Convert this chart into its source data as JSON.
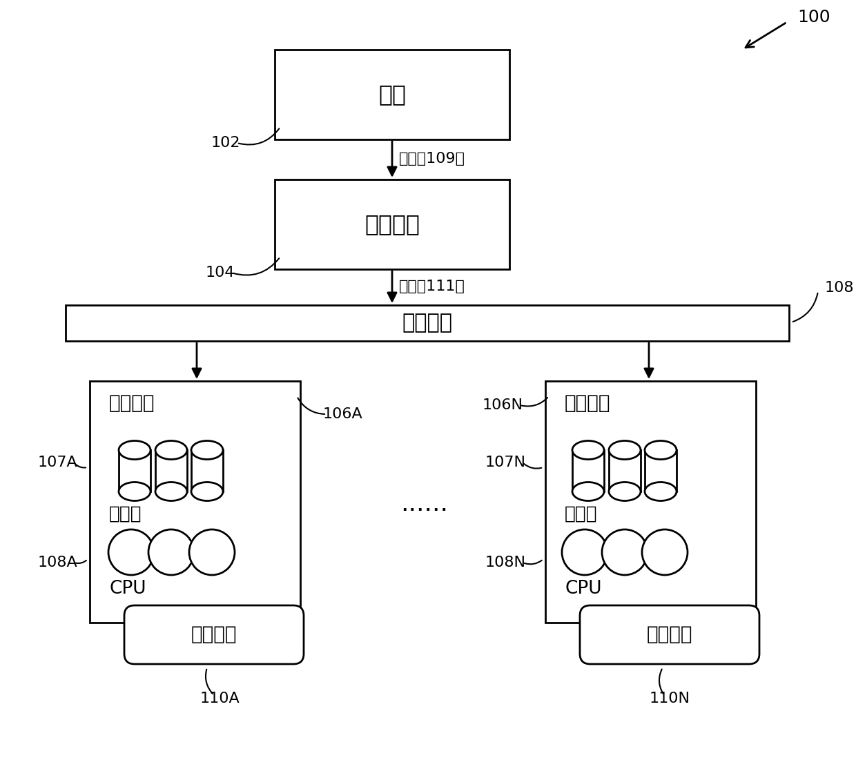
{
  "bg_color": "#ffffff",
  "label_100": "100",
  "label_102": "102",
  "label_104": "104",
  "label_108": "108",
  "label_109": "查询（109）",
  "label_111": "计划（111）",
  "label_106A": "106A",
  "label_106N": "106N",
  "label_107A": "107A",
  "label_107N": "107N",
  "label_108A": "108A",
  "label_108N": "108N",
  "label_110A": "110A",
  "label_110N": "110N",
  "text_app": "应用",
  "text_coord": "协调节点",
  "text_network": "通信网络",
  "text_data_node": "数据节点",
  "text_storage": "存储器",
  "text_cpu": "CPU",
  "text_exec_engine": "执行引擎",
  "text_ellipsis": "......",
  "line_color": "#000000",
  "line_width": 2.0,
  "font_size_main": 20,
  "font_size_label": 16,
  "fig_w": 12.4,
  "fig_h": 11.01,
  "dpi": 100
}
